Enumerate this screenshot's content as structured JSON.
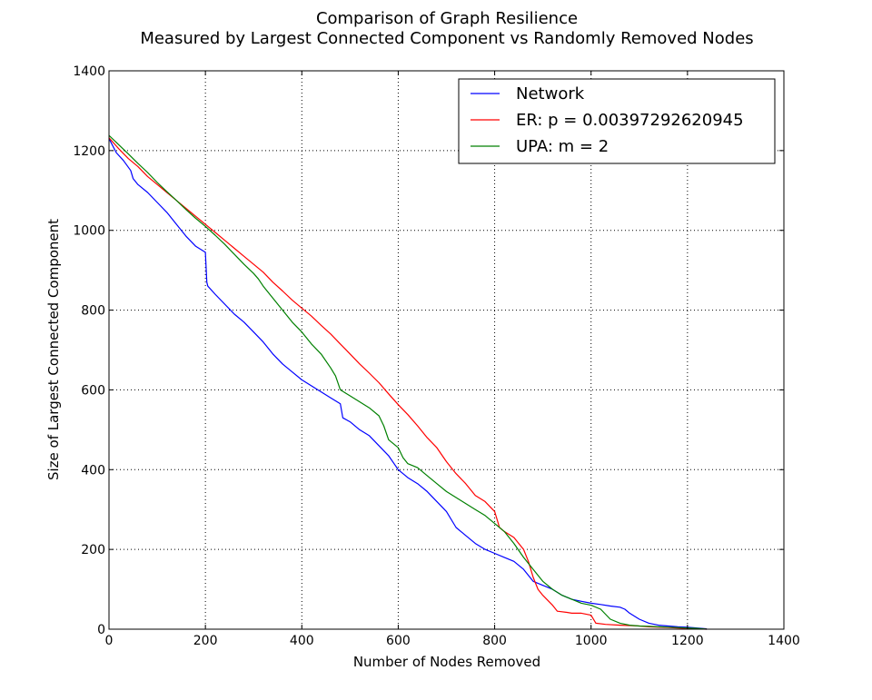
{
  "chart_data": {
    "type": "line",
    "title": "Comparison of Graph Resilience",
    "subtitle": "Measured by Largest Connected Component vs Randomly Removed Nodes",
    "xlabel": "Number of Nodes Removed",
    "ylabel": "Size of Largest Connected Component",
    "xlim": [
      0,
      1400
    ],
    "ylim": [
      0,
      1400
    ],
    "xticks": [
      0,
      200,
      400,
      600,
      800,
      1000,
      1200,
      1400
    ],
    "yticks": [
      0,
      200,
      400,
      600,
      800,
      1000,
      1200,
      1400
    ],
    "grid": true,
    "legend": "top-right",
    "series": [
      {
        "name": "Network",
        "color": "#0000ff",
        "x": [
          0,
          15,
          30,
          45,
          50,
          60,
          80,
          100,
          120,
          140,
          160,
          180,
          200,
          203,
          205,
          220,
          240,
          260,
          280,
          300,
          320,
          340,
          360,
          380,
          400,
          420,
          440,
          460,
          480,
          485,
          500,
          520,
          540,
          560,
          580,
          600,
          620,
          640,
          660,
          680,
          700,
          720,
          740,
          760,
          780,
          800,
          820,
          840,
          860,
          880,
          900,
          920,
          940,
          960,
          980,
          1000,
          1020,
          1040,
          1060,
          1070,
          1080,
          1100,
          1120,
          1140,
          1160,
          1180,
          1200,
          1220,
          1240
        ],
        "y": [
          1230,
          1195,
          1175,
          1150,
          1130,
          1115,
          1095,
          1070,
          1045,
          1015,
          985,
          960,
          945,
          870,
          860,
          840,
          815,
          790,
          770,
          745,
          720,
          690,
          665,
          645,
          625,
          610,
          595,
          580,
          565,
          530,
          520,
          500,
          485,
          460,
          435,
          400,
          380,
          365,
          345,
          320,
          295,
          255,
          235,
          215,
          200,
          190,
          180,
          170,
          150,
          120,
          110,
          100,
          85,
          75,
          70,
          65,
          62,
          58,
          55,
          50,
          40,
          25,
          15,
          10,
          8,
          6,
          5,
          3,
          1
        ]
      },
      {
        "name": "ER: p = 0.00397292620945",
        "color": "#ff0000",
        "x": [
          0,
          20,
          40,
          60,
          80,
          100,
          120,
          140,
          160,
          180,
          200,
          220,
          240,
          260,
          280,
          300,
          320,
          340,
          360,
          380,
          400,
          420,
          440,
          460,
          480,
          500,
          520,
          540,
          560,
          580,
          600,
          620,
          640,
          660,
          680,
          700,
          720,
          740,
          760,
          780,
          800,
          810,
          820,
          840,
          850,
          860,
          870,
          880,
          890,
          900,
          920,
          930,
          950,
          960,
          980,
          1000,
          1010,
          1030,
          1060,
          1080,
          1100,
          1120,
          1140,
          1160,
          1180,
          1200,
          1220,
          1240
        ],
        "y": [
          1232,
          1205,
          1180,
          1160,
          1135,
          1115,
          1095,
          1075,
          1055,
          1035,
          1015,
          995,
          975,
          955,
          935,
          915,
          895,
          870,
          848,
          825,
          805,
          785,
          762,
          740,
          715,
          690,
          665,
          642,
          618,
          590,
          563,
          538,
          510,
          480,
          455,
          420,
          390,
          365,
          335,
          320,
          295,
          255,
          245,
          230,
          215,
          200,
          170,
          130,
          100,
          85,
          60,
          45,
          42,
          40,
          40,
          35,
          15,
          12,
          10,
          9,
          8,
          6,
          5,
          4,
          3,
          2,
          1,
          0
        ]
      },
      {
        "name": "UPA: m = 2",
        "color": "#008000",
        "x": [
          0,
          20,
          40,
          60,
          80,
          100,
          120,
          140,
          160,
          180,
          200,
          220,
          240,
          260,
          280,
          300,
          310,
          320,
          340,
          360,
          380,
          400,
          420,
          440,
          460,
          470,
          480,
          500,
          520,
          540,
          560,
          570,
          580,
          600,
          610,
          620,
          640,
          660,
          680,
          700,
          720,
          740,
          760,
          780,
          800,
          820,
          840,
          860,
          880,
          900,
          920,
          940,
          960,
          980,
          1000,
          1020,
          1040,
          1060,
          1080,
          1100,
          1120,
          1140,
          1160,
          1180,
          1200,
          1220,
          1240
        ],
        "y": [
          1238,
          1215,
          1192,
          1168,
          1145,
          1120,
          1097,
          1075,
          1052,
          1030,
          1010,
          988,
          965,
          940,
          915,
          892,
          878,
          860,
          830,
          800,
          770,
          745,
          715,
          690,
          655,
          635,
          600,
          585,
          570,
          555,
          535,
          510,
          475,
          455,
          430,
          415,
          405,
          385,
          365,
          345,
          330,
          315,
          300,
          285,
          265,
          245,
          215,
          180,
          150,
          120,
          100,
          85,
          75,
          65,
          60,
          50,
          25,
          15,
          10,
          8,
          7,
          6,
          5,
          4,
          3,
          2,
          0
        ]
      }
    ]
  }
}
